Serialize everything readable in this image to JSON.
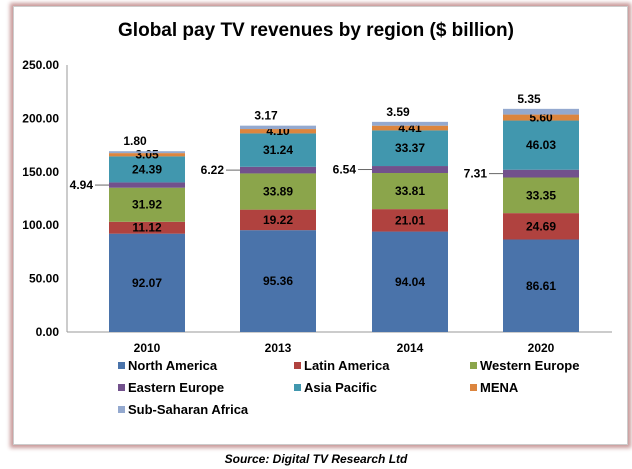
{
  "chart_data": {
    "type": "bar",
    "stacked": true,
    "title": "Global pay TV revenues by region ($ billion)",
    "xlabel": "",
    "ylabel": "",
    "ylim": [
      0,
      250
    ],
    "yticks": [
      "0.00",
      "50.00",
      "100.00",
      "150.00",
      "200.00",
      "250.00"
    ],
    "categories": [
      "2010",
      "2013",
      "2014",
      "2020"
    ],
    "grid": false,
    "legend_position": "bottom",
    "series": [
      {
        "name": "North America",
        "color": "#4a73aa",
        "values": [
          92.07,
          95.36,
          94.04,
          86.61
        ]
      },
      {
        "name": "Latin America",
        "color": "#b0423f",
        "values": [
          11.12,
          19.22,
          21.01,
          24.69
        ]
      },
      {
        "name": "Western Europe",
        "color": "#8ba54b",
        "values": [
          31.92,
          33.89,
          33.81,
          33.35
        ]
      },
      {
        "name": "Eastern Europe",
        "color": "#72518c",
        "values": [
          4.94,
          6.22,
          6.54,
          7.31
        ]
      },
      {
        "name": "Asia Pacific",
        "color": "#4197ae",
        "values": [
          24.39,
          31.24,
          33.37,
          46.03
        ]
      },
      {
        "name": "MENA",
        "color": "#dc853e",
        "values": [
          3.05,
          4.1,
          4.41,
          5.6
        ]
      },
      {
        "name": "Sub-Saharan Africa",
        "color": "#94a9cf",
        "values": [
          1.8,
          3.17,
          3.59,
          5.35
        ]
      }
    ]
  },
  "source": "Source: Digital TV Research Ltd"
}
